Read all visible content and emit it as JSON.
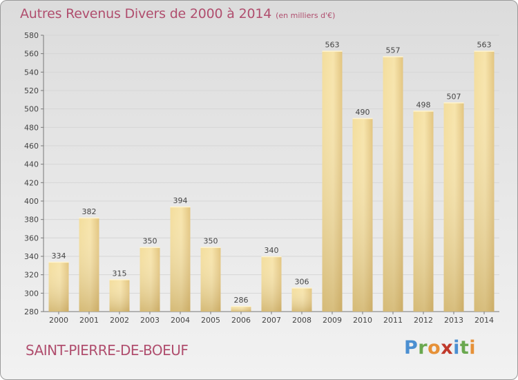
{
  "title": {
    "main": "Autres Revenus Divers de 2000 à 2014",
    "unit": "(en milliers d'€)"
  },
  "commune": "SAINT-PIERRE-DE-BOEUF",
  "logo": {
    "letters": [
      "P",
      "r",
      "o",
      "x",
      "i",
      "t",
      "i"
    ],
    "colors": [
      "#4b8fd1",
      "#6aa84f",
      "#e69138",
      "#c0392b",
      "#4b8fd1",
      "#6aa84f",
      "#e69138"
    ]
  },
  "colors": {
    "title": "#b04e6e",
    "bar_light": "#f7e3a6",
    "bar_dark": "#c9aa62"
  },
  "chart_data": {
    "type": "bar",
    "categories": [
      "2000",
      "2001",
      "2002",
      "2003",
      "2004",
      "2005",
      "2006",
      "2007",
      "2008",
      "2009",
      "2010",
      "2011",
      "2012",
      "2013",
      "2014"
    ],
    "values": [
      334,
      382,
      315,
      350,
      394,
      350,
      286,
      340,
      306,
      563,
      490,
      557,
      498,
      507,
      563
    ],
    "title": "Autres Revenus Divers de 2000 à 2014",
    "xlabel": "",
    "ylabel": "",
    "ylim": [
      280,
      580
    ],
    "yticks": [
      280,
      300,
      320,
      340,
      360,
      380,
      400,
      420,
      440,
      460,
      480,
      500,
      520,
      540,
      560,
      580
    ],
    "grid": "horizontal"
  }
}
